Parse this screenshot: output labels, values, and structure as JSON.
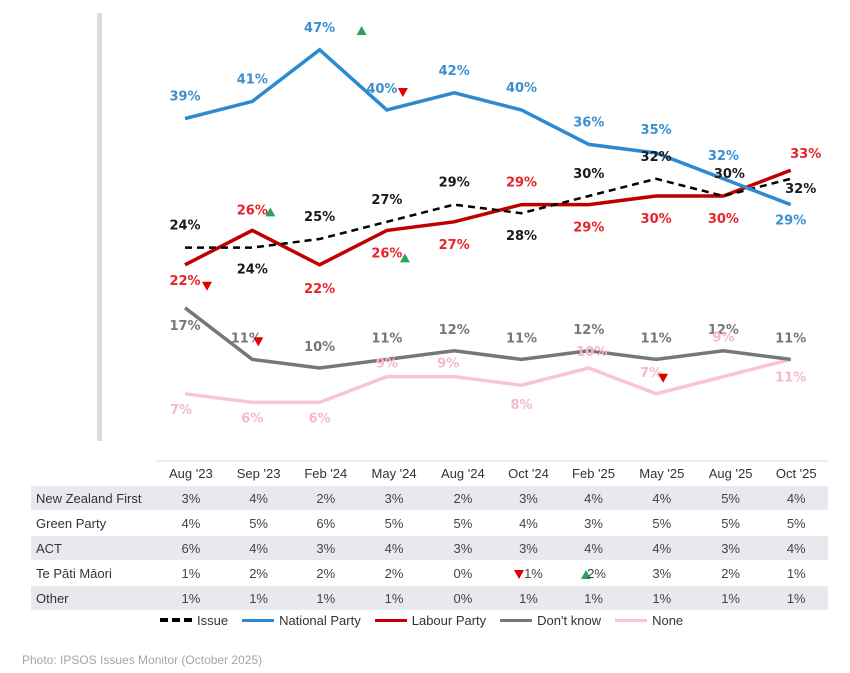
{
  "chart_data": {
    "type": "line",
    "title": "",
    "xlabel": "",
    "ylabel": "",
    "ylim": [
      0,
      50
    ],
    "grid": false,
    "x": [
      "Aug '23",
      "Sep '23",
      "Feb '24",
      "May '24",
      "Aug '24",
      "Oct '24",
      "Feb '25",
      "May '25",
      "Aug '25",
      "Oct  '25"
    ],
    "series": [
      {
        "name": "Issue",
        "color": "#000000",
        "dash": true,
        "label_color": "#1a1a1a",
        "values": [
          24,
          24,
          25,
          27,
          29,
          28,
          30,
          32,
          30,
          32
        ],
        "labels": [
          "24%",
          "24%",
          "25%",
          "27%",
          "29%",
          "28%",
          "30%",
          "32%",
          "30%",
          "32%"
        ],
        "markers": [
          null,
          null,
          null,
          null,
          null,
          null,
          null,
          null,
          null,
          null
        ]
      },
      {
        "name": "National Party",
        "color": "#2e8ad0",
        "dash": false,
        "label_color": "#3a8fd0",
        "values": [
          39,
          41,
          47,
          40,
          42,
          40,
          36,
          35,
          32,
          29
        ],
        "labels": [
          "39%",
          "41%",
          "47%",
          "40%",
          "42%",
          "40%",
          "36%",
          "35%",
          "32%",
          "29%"
        ],
        "markers": [
          null,
          null,
          "up",
          "down",
          null,
          null,
          null,
          null,
          null,
          null
        ]
      },
      {
        "name": "Labour Party",
        "color": "#c00000",
        "dash": false,
        "label_color": "#e8242a",
        "values": [
          22,
          26,
          22,
          26,
          27,
          29,
          29,
          30,
          30,
          33
        ],
        "labels": [
          "22%",
          "26%",
          "22%",
          "26%",
          "27%",
          "29%",
          "29%",
          "30%",
          "30%",
          "33%"
        ],
        "markers": [
          "down",
          "up",
          null,
          "up",
          null,
          null,
          null,
          null,
          null,
          null
        ]
      },
      {
        "name": "Don't know",
        "color": "#777777",
        "dash": false,
        "label_color": "#777777",
        "values": [
          17,
          11,
          10,
          11,
          12,
          11,
          12,
          11,
          12,
          11
        ],
        "labels": [
          "17%",
          "11%",
          "10%",
          "11%",
          "12%",
          "11%",
          "12%",
          "11%",
          "12%",
          "11%"
        ],
        "markers": [
          null,
          "down",
          null,
          null,
          null,
          null,
          null,
          null,
          null,
          null
        ]
      },
      {
        "name": "None",
        "color": "#f9c5d6",
        "dash": false,
        "label_color": "#f5b8cc",
        "values": [
          7,
          6,
          6,
          9,
          9,
          8,
          10,
          7,
          9,
          11
        ],
        "labels": [
          "7%",
          "6%",
          "6%",
          "9%",
          "9%",
          "8%",
          "10%",
          "7%",
          "9%",
          "11%"
        ],
        "markers": [
          null,
          null,
          null,
          null,
          null,
          null,
          null,
          "down",
          null,
          null
        ]
      }
    ],
    "legend": {
      "placement": "bottom",
      "items": [
        "Issue",
        "National Party",
        "Labour Party",
        "Don't know",
        "None"
      ]
    },
    "marker_colors": {
      "up": "#27a35a",
      "down": "#e00000"
    }
  },
  "table": {
    "columns": [
      "Aug '23",
      "Sep '23",
      "Feb '24",
      "May '24",
      "Aug '24",
      "Oct '24",
      "Feb '25",
      "May '25",
      "Aug '25",
      "Oct  '25"
    ],
    "rows": [
      {
        "name": "New Zealand First",
        "values": [
          "3%",
          "4%",
          "2%",
          "3%",
          "2%",
          "3%",
          "4%",
          "4%",
          "5%",
          "4%"
        ],
        "markers": [
          null,
          null,
          null,
          null,
          null,
          null,
          null,
          null,
          null,
          null
        ]
      },
      {
        "name": "Green Party",
        "values": [
          "4%",
          "5%",
          "6%",
          "5%",
          "5%",
          "4%",
          "3%",
          "5%",
          "5%",
          "5%"
        ],
        "markers": [
          null,
          null,
          null,
          null,
          null,
          null,
          null,
          null,
          null,
          null
        ]
      },
      {
        "name": "ACT",
        "values": [
          "6%",
          "4%",
          "3%",
          "4%",
          "3%",
          "3%",
          "4%",
          "4%",
          "3%",
          "4%"
        ],
        "markers": [
          null,
          null,
          null,
          null,
          null,
          null,
          null,
          null,
          null,
          null
        ]
      },
      {
        "name": "Te Pāti Māori",
        "values": [
          "1%",
          "2%",
          "2%",
          "2%",
          "0%",
          "1%",
          "2%",
          "3%",
          "2%",
          "1%"
        ],
        "markers": [
          null,
          null,
          null,
          null,
          null,
          "down",
          "up",
          null,
          null,
          null
        ]
      },
      {
        "name": "Other",
        "values": [
          "1%",
          "1%",
          "1%",
          "1%",
          "0%",
          "1%",
          "1%",
          "1%",
          "1%",
          "1%"
        ],
        "markers": [
          null,
          null,
          null,
          null,
          null,
          null,
          null,
          null,
          null,
          null
        ]
      }
    ]
  },
  "caption": "Photo: IPSOS Issues Monitor (October 2025)"
}
